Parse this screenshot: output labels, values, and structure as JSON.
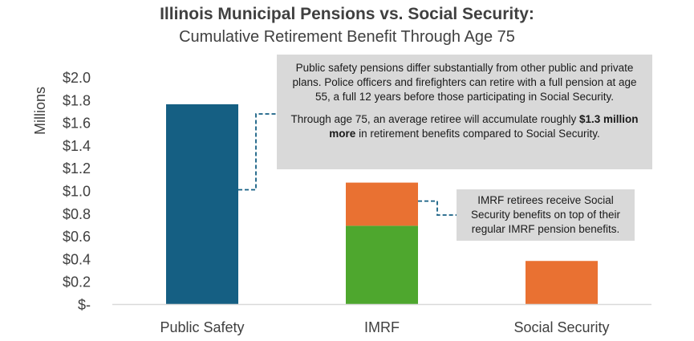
{
  "chart_data": {
    "type": "bar",
    "title": "Illinois Municipal Pensions vs. Social Security:",
    "subtitle": "Cumulative Retirement Benefit Through Age 75",
    "ylabel": "Millions",
    "ylim": [
      0,
      2.0
    ],
    "yticks": [
      0,
      0.2,
      0.4,
      0.6,
      0.8,
      1.0,
      1.2,
      1.4,
      1.6,
      1.8,
      2.0
    ],
    "ytick_labels": [
      "$-",
      "$0.2",
      "$0.4",
      "$0.6",
      "$0.8",
      "$1.0",
      "$1.2",
      "$1.4",
      "$1.6",
      "$1.8",
      "$2.0"
    ],
    "categories": [
      "Public Safety",
      "IMRF",
      "Social Security"
    ],
    "series": [
      {
        "key": "public_safety",
        "color": "#155f83",
        "values": [
          1.76,
          0,
          0
        ]
      },
      {
        "key": "imrf",
        "color": "#4ea72e",
        "values": [
          0,
          0.69,
          0
        ]
      },
      {
        "key": "social_security",
        "color": "#e97132",
        "values": [
          0,
          0.38,
          0.38
        ]
      }
    ],
    "stacked": true,
    "grid": false,
    "legend": "none"
  },
  "annotations": {
    "note1_p1": "Public safety pensions differ substantially from other public and private plans. Police officers and firefighters can retire with a full pension at age 55, a full 12 years before those participating in Social Security.",
    "note1_p2_pre": "Through age 75, an average retiree will accumulate roughly ",
    "note1_p2_bold": "$1.3 million more",
    "note1_p2_post": " in retirement benefits compared to Social Security.",
    "note2": "IMRF retirees receive Social Security benefits on top of their regular IMRF pension benefits."
  },
  "colors": {
    "text": "#404040",
    "axis": "#d9d9d9",
    "connector": "#155f83",
    "note_bg": "#d9d9d9"
  }
}
